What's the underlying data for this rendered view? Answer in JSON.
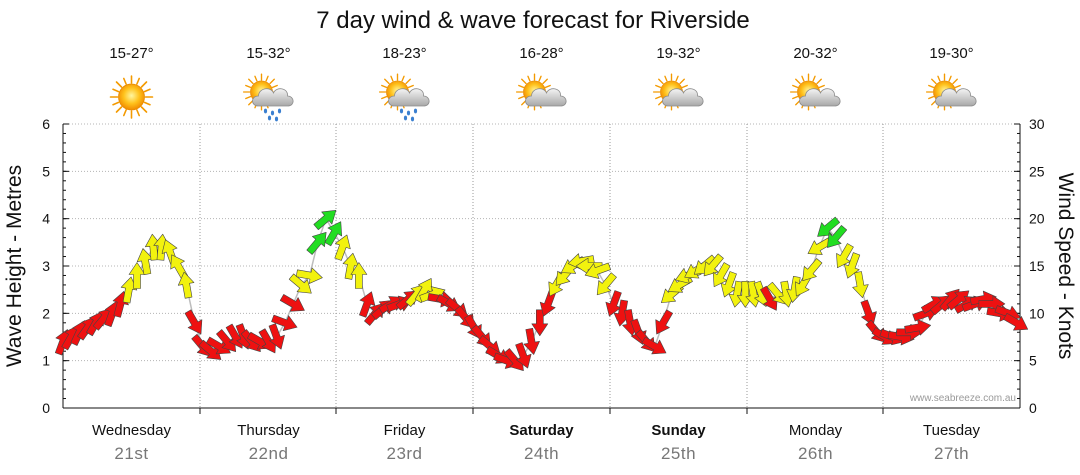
{
  "chart_data": {
    "type": "line",
    "title": "7 day wind & wave forecast for Riverside",
    "ylabel": "Wave Height - Metres",
    "y2label": "Wind Speed - Knots",
    "ylim": [
      0,
      6
    ],
    "y2lim": [
      0,
      30
    ],
    "yticks": [
      "0",
      "1",
      "2",
      "3",
      "4",
      "5",
      "6"
    ],
    "y2ticks": [
      "0",
      "5",
      "10",
      "15",
      "20",
      "25",
      "30"
    ],
    "credit": "www.seabreeze.com.au",
    "colors": {
      "low": "#ee1111",
      "mid": "#f2f20e",
      "high": "#22dd22",
      "line": "#bdbdbd"
    },
    "days": [
      {
        "name": "Wednesday",
        "date": "21st",
        "temp": "15-27°",
        "icon": "sunny-icon",
        "bold": false
      },
      {
        "name": "Thursday",
        "date": "22nd",
        "temp": "15-32°",
        "icon": "sun-cloud-rain-icon",
        "bold": false
      },
      {
        "name": "Friday",
        "date": "23rd",
        "temp": "18-23°",
        "icon": "sun-cloud-rain-icon",
        "bold": false
      },
      {
        "name": "Saturday",
        "date": "24th",
        "temp": "16-28°",
        "icon": "sun-cloud-icon",
        "bold": true
      },
      {
        "name": "Sunday",
        "date": "25th",
        "temp": "19-32°",
        "icon": "sun-cloud-icon",
        "bold": true
      },
      {
        "name": "Monday",
        "date": "26th",
        "temp": "20-32°",
        "icon": "sun-cloud-icon",
        "bold": false
      },
      {
        "name": "Tuesday",
        "date": "27th",
        "temp": "19-30°",
        "icon": "sun-cloud-icon",
        "bold": false
      }
    ],
    "series": [
      {
        "name": "Wind Speed (knots)",
        "axis": "right",
        "x_days": [
          0.0,
          0.06,
          0.12,
          0.18,
          0.24,
          0.3,
          0.36,
          0.42,
          0.48,
          0.54,
          0.6,
          0.66,
          0.72,
          0.78,
          0.84,
          0.9,
          0.96,
          1.02,
          1.08,
          1.14,
          1.2,
          1.26,
          1.32,
          1.38,
          1.44,
          1.5,
          1.56,
          1.62,
          1.68,
          1.74,
          1.8,
          1.86,
          1.92,
          1.98,
          2.04,
          2.1,
          2.16,
          2.22,
          2.28,
          2.34,
          2.4,
          2.46,
          2.52,
          2.58,
          2.64,
          2.7,
          2.76,
          2.82,
          2.88,
          2.94,
          3.0,
          3.06,
          3.12,
          3.18,
          3.24,
          3.3,
          3.36,
          3.42,
          3.48,
          3.54,
          3.6,
          3.66,
          3.72,
          3.78,
          3.84,
          3.9,
          3.96,
          4.02,
          4.08,
          4.14,
          4.2,
          4.26,
          4.32,
          4.38,
          4.44,
          4.5,
          4.56,
          4.62,
          4.68,
          4.74,
          4.8,
          4.86,
          4.92,
          4.98,
          5.04,
          5.1,
          5.16,
          5.22,
          5.28,
          5.34,
          5.4,
          5.46,
          5.52,
          5.58,
          5.64,
          5.7,
          5.76,
          5.82,
          5.88,
          5.94,
          6.0,
          6.06,
          6.12,
          6.18,
          6.24,
          6.3,
          6.36,
          6.42,
          6.48,
          6.54,
          6.6,
          6.66,
          6.72,
          6.78,
          6.84,
          6.9,
          6.96
        ],
        "knots": [
          7,
          7.5,
          8,
          8.5,
          9,
          9.5,
          10,
          11,
          12.5,
          14,
          15.5,
          17,
          17,
          16.5,
          15,
          13,
          9,
          6.5,
          6,
          6.5,
          7,
          7.5,
          7.5,
          7,
          7,
          7,
          7.5,
          9,
          11,
          13,
          14,
          17.5,
          20,
          18.5,
          17,
          15,
          14,
          11,
          10,
          10.5,
          11,
          11,
          11.5,
          12,
          12.5,
          12,
          11.5,
          11,
          10.5,
          9.5,
          8.5,
          7.5,
          6.5,
          5.5,
          5,
          5,
          5.5,
          7,
          9,
          11,
          13,
          14,
          15,
          15.5,
          15,
          14.5,
          13,
          11,
          10,
          9,
          8,
          7,
          6.5,
          9,
          12,
          13,
          14,
          14.5,
          15,
          15,
          14,
          13,
          12,
          12,
          12,
          12,
          11.5,
          12,
          12,
          12.5,
          13,
          14.5,
          17,
          19,
          18,
          16,
          15,
          13,
          10,
          8,
          7.5,
          7.5,
          7.5,
          8,
          8.5,
          10,
          11,
          11,
          11.5,
          11.5,
          11,
          11,
          11.5,
          11,
          10,
          10,
          9
        ]
      },
      {
        "name": "Wave Height (m)",
        "axis": "left",
        "x_days": [
          0.0,
          0.06,
          0.12,
          0.18,
          0.24,
          0.3,
          0.36,
          0.42,
          0.48,
          0.54,
          0.6,
          0.66,
          0.72,
          0.78,
          0.84,
          0.9,
          0.96,
          1.02,
          1.08,
          1.14,
          1.2,
          1.26,
          1.32,
          1.38,
          1.44,
          1.5,
          1.56,
          1.62,
          1.68,
          1.74,
          1.8,
          1.86,
          1.92,
          1.98,
          2.04,
          2.1,
          2.16,
          2.22,
          2.28,
          2.34,
          2.4,
          2.46,
          2.52,
          2.58,
          2.64,
          2.7,
          2.76,
          2.82,
          2.88,
          2.94,
          3.0,
          3.06,
          3.12,
          3.18,
          3.24,
          3.3,
          3.36,
          3.42,
          3.48,
          3.54,
          3.6,
          3.66,
          3.72,
          3.78,
          3.84,
          3.9,
          3.96,
          4.02,
          4.08,
          4.14,
          4.2,
          4.26,
          4.32,
          4.38,
          4.44,
          4.5,
          4.56,
          4.62,
          4.68,
          4.74,
          4.8,
          4.86,
          4.92,
          4.98,
          5.04,
          5.1,
          5.16,
          5.22,
          5.28,
          5.34,
          5.4,
          5.46,
          5.52,
          5.58,
          5.64,
          5.7,
          5.76,
          5.82,
          5.88,
          5.94,
          6.0,
          6.06,
          6.12,
          6.18,
          6.24,
          6.3,
          6.36,
          6.42,
          6.48,
          6.54,
          6.6,
          6.66,
          6.72,
          6.78,
          6.84,
          6.9,
          6.96
        ],
        "metres": [
          1.4,
          1.5,
          1.6,
          1.7,
          1.8,
          1.9,
          2.0,
          2.2,
          2.5,
          2.8,
          3.1,
          3.4,
          3.4,
          3.3,
          3.0,
          2.6,
          1.8,
          1.3,
          1.2,
          1.3,
          1.4,
          1.5,
          1.5,
          1.4,
          1.4,
          1.4,
          1.5,
          1.8,
          2.2,
          2.6,
          2.8,
          3.5,
          4.0,
          3.7,
          3.4,
          3.0,
          2.8,
          2.2,
          2.0,
          2.1,
          2.2,
          2.2,
          2.3,
          2.4,
          2.5,
          2.4,
          2.3,
          2.2,
          2.1,
          1.9,
          1.7,
          1.5,
          1.3,
          1.1,
          1.0,
          1.0,
          1.1,
          1.4,
          1.8,
          2.2,
          2.6,
          2.8,
          3.0,
          3.1,
          3.0,
          2.9,
          2.6,
          2.2,
          2.0,
          1.8,
          1.6,
          1.4,
          1.3,
          1.8,
          2.4,
          2.6,
          2.8,
          2.9,
          3.0,
          3.0,
          2.8,
          2.6,
          2.4,
          2.4,
          2.4,
          2.4,
          2.3,
          2.4,
          2.4,
          2.5,
          2.6,
          2.9,
          3.4,
          3.8,
          3.6,
          3.2,
          3.0,
          2.6,
          2.0,
          1.6,
          1.5,
          1.5,
          1.5,
          1.6,
          1.7,
          2.0,
          2.2,
          2.2,
          2.3,
          2.3,
          2.2,
          2.2,
          2.3,
          2.2,
          2.0,
          2.0,
          1.8
        ]
      }
    ],
    "wind_direction_deg": [
      200,
      210,
      205,
      215,
      210,
      220,
      200,
      195,
      190,
      180,
      170,
      175,
      185,
      160,
      150,
      170,
      330,
      320,
      310,
      300,
      320,
      330,
      340,
      320,
      300,
      330,
      340,
      290,
      300,
      310,
      280,
      220,
      230,
      210,
      200,
      190,
      180,
      200,
      220,
      230,
      240,
      250,
      230,
      220,
      210,
      250,
      280,
      300,
      310,
      320,
      330,
      320,
      310,
      300,
      290,
      320,
      340,
      350,
      0,
      20,
      30,
      40,
      60,
      80,
      90,
      70,
      40,
      20,
      10,
      350,
      340,
      320,
      300,
      30,
      50,
      60,
      70,
      60,
      50,
      40,
      30,
      20,
      10,
      0,
      350,
      340,
      330,
      320,
      350,
      10,
      30,
      40,
      60,
      50,
      40,
      30,
      20,
      350,
      340,
      320,
      300,
      290,
      280,
      270,
      260,
      250,
      240,
      230,
      220,
      230,
      240,
      250,
      260,
      270,
      280,
      290,
      300
    ]
  }
}
